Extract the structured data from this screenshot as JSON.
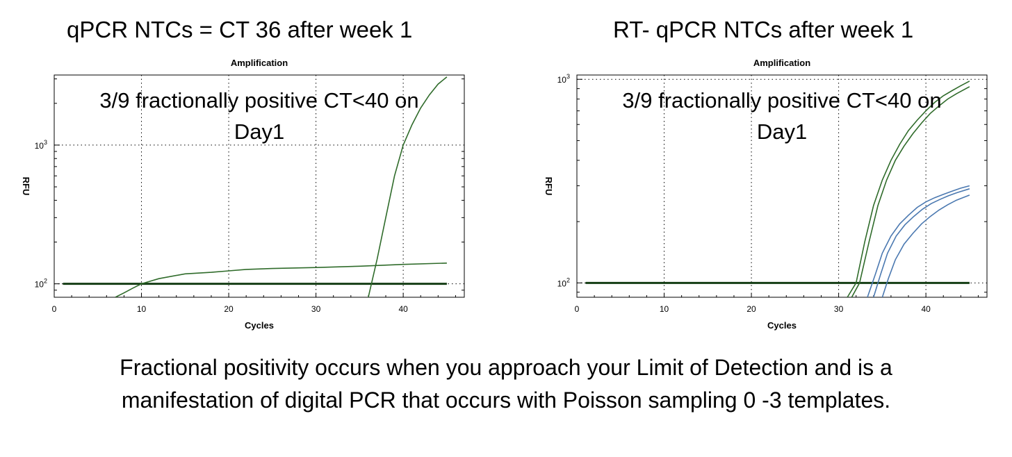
{
  "headings": {
    "left": "qPCR NTCs = CT  36 after week 1",
    "right": "RT- qPCR NTCs after week 1"
  },
  "caption": {
    "line1": "Fractional positivity occurs when you approach your Limit of Detection and is a",
    "line2": "manifestation of digital PCR that occurs with Poisson sampling  0 -3 templates."
  },
  "colors": {
    "green": "#2f6b2a",
    "threshold": "#143d14",
    "blue": "#4a78b0",
    "grid": "#000000"
  },
  "chart_data": [
    {
      "type": "line",
      "title": "Amplification",
      "xlabel": "Cycles",
      "ylabel": "RFU",
      "yscale": "log",
      "xlim": [
        0,
        47
      ],
      "ylim": [
        80,
        3200
      ],
      "xticks": [
        0,
        10,
        20,
        30,
        40
      ],
      "ytick_labels": [
        {
          "base": "10",
          "exp": "2",
          "value": 100
        },
        {
          "base": "10",
          "exp": "3",
          "value": 1000
        }
      ],
      "grid": true,
      "annotation": {
        "line1": "3/9 fractionally positive CT<40 on",
        "line2": "Day1"
      },
      "threshold": {
        "y": 100
      },
      "series": [
        {
          "color": "green",
          "points": [
            [
              7,
              80
            ],
            [
              8,
              86
            ],
            [
              9,
              93
            ],
            [
              10,
              100
            ],
            [
              12,
              109
            ],
            [
              15,
              118
            ],
            [
              18,
              121
            ],
            [
              20,
              124
            ],
            [
              22,
              127
            ],
            [
              25,
              129
            ],
            [
              30,
              131
            ],
            [
              35,
              134
            ],
            [
              40,
              138
            ],
            [
              45,
              141
            ]
          ]
        },
        {
          "color": "green",
          "points": [
            [
              36,
              80
            ],
            [
              37,
              150
            ],
            [
              38,
              300
            ],
            [
              39,
              600
            ],
            [
              40,
              1000
            ],
            [
              41,
              1400
            ],
            [
              42,
              1850
            ],
            [
              43,
              2300
            ],
            [
              44,
              2750
            ],
            [
              45,
              3100
            ]
          ]
        }
      ]
    },
    {
      "type": "line",
      "title": "Amplification",
      "xlabel": "Cycles",
      "ylabel": "RFU",
      "yscale": "log",
      "xlim": [
        0,
        47
      ],
      "ylim": [
        85,
        1050
      ],
      "xticks": [
        0,
        10,
        20,
        30,
        40
      ],
      "ytick_labels": [
        {
          "base": "10",
          "exp": "2",
          "value": 100
        },
        {
          "base": "10",
          "exp": "3",
          "value": 1000
        }
      ],
      "grid": true,
      "annotation": {
        "line1": "3/9 fractionally positive CT<40 on",
        "line2": "Day1"
      },
      "threshold": {
        "y": 100
      },
      "series": [
        {
          "color": "green",
          "points": [
            [
              31,
              85
            ],
            [
              32,
              100
            ],
            [
              33,
              160
            ],
            [
              34,
              240
            ],
            [
              35,
              320
            ],
            [
              36,
              400
            ],
            [
              37,
              480
            ],
            [
              38,
              560
            ],
            [
              39,
              630
            ],
            [
              40,
              700
            ],
            [
              41,
              770
            ],
            [
              42,
              830
            ],
            [
              43,
              880
            ],
            [
              44,
              930
            ],
            [
              45,
              980
            ]
          ]
        },
        {
          "color": "green",
          "points": [
            [
              31.5,
              85
            ],
            [
              32.4,
              100
            ],
            [
              33.5,
              160
            ],
            [
              34.5,
              240
            ],
            [
              35.5,
              320
            ],
            [
              36.5,
              400
            ],
            [
              37.5,
              470
            ],
            [
              38.5,
              540
            ],
            [
              39.5,
              610
            ],
            [
              40.5,
              680
            ],
            [
              41.5,
              740
            ],
            [
              42.5,
              800
            ],
            [
              43.5,
              850
            ],
            [
              45,
              920
            ]
          ]
        },
        {
          "color": "blue",
          "points": [
            [
              33.3,
              85
            ],
            [
              34.2,
              110
            ],
            [
              35,
              140
            ],
            [
              36,
              170
            ],
            [
              37,
              195
            ],
            [
              38,
              215
            ],
            [
              39,
              235
            ],
            [
              40,
              250
            ],
            [
              41,
              262
            ],
            [
              42,
              272
            ],
            [
              43,
              282
            ],
            [
              44,
              292
            ],
            [
              45,
              300
            ]
          ]
        },
        {
          "color": "blue",
          "points": [
            [
              34,
              85
            ],
            [
              34.8,
              110
            ],
            [
              35.6,
              140
            ],
            [
              36.6,
              170
            ],
            [
              37.6,
              193
            ],
            [
              38.6,
              212
            ],
            [
              39.6,
              230
            ],
            [
              40.6,
              245
            ],
            [
              41.6,
              257
            ],
            [
              42.6,
              268
            ],
            [
              43.6,
              278
            ],
            [
              45,
              290
            ]
          ]
        },
        {
          "color": "blue",
          "points": [
            [
              35,
              85
            ],
            [
              35.7,
              105
            ],
            [
              36.5,
              130
            ],
            [
              37.5,
              155
            ],
            [
              38.5,
              175
            ],
            [
              39.5,
              195
            ],
            [
              40.5,
              212
            ],
            [
              41.5,
              228
            ],
            [
              42.5,
              242
            ],
            [
              43.5,
              255
            ],
            [
              45,
              270
            ]
          ]
        }
      ]
    }
  ]
}
